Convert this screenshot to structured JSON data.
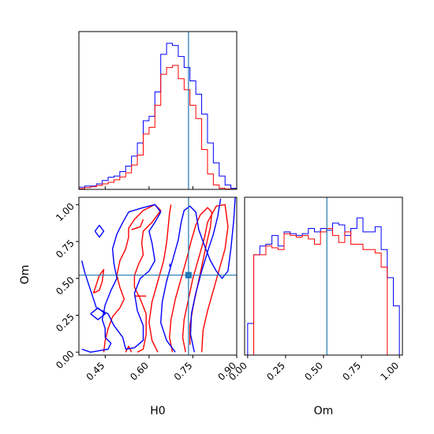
{
  "colors": {
    "blue": "#0000ff",
    "red": "#ff0000",
    "truth": "#1f77b4"
  },
  "chart_data": {
    "type": "corner",
    "parameters": [
      "H0",
      "Om"
    ],
    "truths": {
      "H0": 0.735,
      "Om": 0.522
    },
    "panels": [
      {
        "name": "hist-H0",
        "type": "step-histogram",
        "xlim": [
          0.36,
          0.9
        ],
        "bin_edges": [
          0.36,
          0.38,
          0.4,
          0.42,
          0.44,
          0.46,
          0.48,
          0.5,
          0.52,
          0.54,
          0.56,
          0.58,
          0.6,
          0.62,
          0.64,
          0.66,
          0.68,
          0.7,
          0.72,
          0.74,
          0.76,
          0.78,
          0.8,
          0.82,
          0.84,
          0.86,
          0.88,
          0.9
        ],
        "series": [
          {
            "name": "blue",
            "values": [
              1.0,
              1.5,
              1.5,
              2.5,
              4.0,
              5.5,
              6.0,
              8.0,
              10.5,
              15.0,
              21.0,
              31.0,
              33.0,
              44.0,
              61.0,
              66.0,
              65.0,
              60.0,
              55.0,
              49.0,
              43.0,
              34.0,
              21.0,
              12.0,
              6.0,
              2.0,
              0.5
            ]
          },
          {
            "name": "red",
            "values": [
              0.3,
              0.8,
              1.2,
              1.8,
              2.5,
              3.2,
              4.3,
              5.6,
              7.5,
              11.0,
              15.5,
              25.0,
              28.0,
              38.0,
              52.0,
              55.0,
              56.0,
              50.0,
              45.0,
              38.0,
              32.0,
              18.0,
              7.0,
              2.0,
              0.5,
              0.2,
              0.1
            ]
          }
        ]
      },
      {
        "name": "hist-Om",
        "type": "step-histogram",
        "xlim": [
          -0.02,
          1.02
        ],
        "xticks": [
          "0.00",
          "0.25",
          "0.50",
          "0.75",
          "1.00"
        ],
        "xlabel": "Om",
        "bin_edges": [
          0.0,
          0.04,
          0.08,
          0.12,
          0.16,
          0.2,
          0.24,
          0.28,
          0.32,
          0.36,
          0.4,
          0.44,
          0.48,
          0.52,
          0.56,
          0.6,
          0.64,
          0.68,
          0.72,
          0.76,
          0.8,
          0.84,
          0.88,
          0.92,
          0.96,
          1.0
        ],
        "series": [
          {
            "name": "blue",
            "values": [
              18,
              57,
              62,
              63,
              68,
              62,
              70,
              69,
              68,
              69,
              72,
              70,
              72,
              71,
              75,
              74,
              68,
              72,
              78,
              70,
              70,
              73,
              60,
              44,
              28
            ]
          },
          {
            "name": "red",
            "values": [
              0,
              57,
              57,
              62,
              61,
              60,
              69,
              68,
              67,
              68,
              66,
              63,
              70,
              72,
              68,
              64,
              70,
              63,
              63,
              60,
              60,
              58,
              50,
              0,
              0
            ]
          }
        ]
      },
      {
        "name": "contour-H0-Om",
        "type": "contour",
        "xlim": [
          0.36,
          0.9
        ],
        "ylim": [
          -0.02,
          1.05
        ],
        "xticks": [
          "0.45",
          "0.60",
          "0.75",
          "0.90"
        ],
        "yticks": [
          "0.00",
          "0.25",
          "0.50",
          "0.75",
          "1.00"
        ],
        "xlabel": "H0",
        "ylabel": "Om",
        "series": [
          {
            "name": "blue",
            "contours": [
              [
                [
                  0.755,
                  0.0
                ],
                [
                  0.742,
                  0.12
                ],
                [
                  0.745,
                  0.26
                ],
                [
                  0.76,
                  0.4
                ],
                [
                  0.78,
                  0.55
                ],
                [
                  0.8,
                  0.68
                ],
                [
                  0.82,
                  0.8
                ],
                [
                  0.835,
                  0.92
                ],
                [
                  0.845,
                  1.04
                ]
              ],
              [
                [
                  0.69,
                  0.0
                ],
                [
                  0.66,
                  0.08
                ],
                [
                  0.64,
                  0.2
                ],
                [
                  0.645,
                  0.34
                ],
                [
                  0.66,
                  0.48
                ],
                [
                  0.68,
                  0.62
                ],
                [
                  0.7,
                  0.76
                ],
                [
                  0.71,
                  0.88
                ],
                [
                  0.72,
                  0.96
                ],
                [
                  0.74,
                  0.99
                ],
                [
                  0.76,
                  0.95
                ],
                [
                  0.77,
                  0.83
                ],
                [
                  0.79,
                  0.72
                ],
                [
                  0.81,
                  0.62
                ],
                [
                  0.83,
                  0.55
                ],
                [
                  0.85,
                  0.5
                ],
                [
                  0.87,
                  0.55
                ],
                [
                  0.88,
                  0.7
                ],
                [
                  0.89,
                  0.9
                ],
                [
                  0.895,
                  1.05
                ]
              ],
              [
                [
                  0.37,
                  0.02
                ],
                [
                  0.4,
                  0.0
                ],
                [
                  0.43,
                  0.01
                ],
                [
                  0.46,
                  0.02
                ],
                [
                  0.47,
                  0.06
                ],
                [
                  0.45,
                  0.1
                ],
                [
                  0.45,
                  0.16
                ],
                [
                  0.44,
                  0.22
                ],
                [
                  0.45,
                  0.32
                ],
                [
                  0.47,
                  0.42
                ],
                [
                  0.49,
                  0.5
                ],
                [
                  0.48,
                  0.6
                ],
                [
                  0.475,
                  0.7
                ],
                [
                  0.49,
                  0.8
                ],
                [
                  0.51,
                  0.88
                ],
                [
                  0.53,
                  0.95
                ],
                [
                  0.58,
                  0.98
                ],
                [
                  0.62,
                  1.0
                ],
                [
                  0.64,
                  0.95
                ],
                [
                  0.62,
                  0.88
                ],
                [
                  0.6,
                  0.82
                ],
                [
                  0.61,
                  0.74
                ],
                [
                  0.62,
                  0.62
                ],
                [
                  0.6,
                  0.55
                ],
                [
                  0.57,
                  0.5
                ],
                [
                  0.55,
                  0.4
                ],
                [
                  0.56,
                  0.28
                ],
                [
                  0.58,
                  0.18
                ],
                [
                  0.58,
                  0.08
                ],
                [
                  0.55,
                  0.03
                ],
                [
                  0.52,
                  0.02
                ],
                [
                  0.51,
                  0.1
                ],
                [
                  0.48,
                  0.18
                ],
                [
                  0.46,
                  0.26
                ],
                [
                  0.42,
                  0.3
                ],
                [
                  0.4,
                  0.42
                ],
                [
                  0.38,
                  0.54
                ],
                [
                  0.37,
                  0.62
                ]
              ],
              [
                [
                  0.4,
                  0.26
                ],
                [
                  0.425,
                  0.22
                ],
                [
                  0.45,
                  0.26
                ],
                [
                  0.425,
                  0.3
                ],
                [
                  0.4,
                  0.26
                ]
              ],
              [
                [
                  0.415,
                  0.82
                ],
                [
                  0.43,
                  0.78
                ],
                [
                  0.445,
                  0.82
                ],
                [
                  0.43,
                  0.86
                ],
                [
                  0.415,
                  0.82
                ]
              ],
              [
                [
                  0.67,
                  0.58
                ],
                [
                  0.672,
                  0.6
                ]
              ]
            ]
          },
          {
            "name": "red",
            "contours": [
              [
                [
                  0.725,
                  0.0
                ],
                [
                  0.715,
                  0.1
                ],
                [
                  0.72,
                  0.22
                ],
                [
                  0.735,
                  0.36
                ],
                [
                  0.75,
                  0.5
                ],
                [
                  0.77,
                  0.64
                ],
                [
                  0.79,
                  0.78
                ],
                [
                  0.8,
                  0.88
                ],
                [
                  0.83,
                  0.99
                ],
                [
                  0.86,
                  1.0
                ],
                [
                  0.87,
                  0.85
                ],
                [
                  0.86,
                  0.7
                ],
                [
                  0.84,
                  0.56
                ],
                [
                  0.82,
                  0.42
                ],
                [
                  0.8,
                  0.28
                ],
                [
                  0.785,
                  0.15
                ],
                [
                  0.78,
                  0.0
                ]
              ],
              [
                [
                  0.68,
                  0.0
                ],
                [
                  0.67,
                  0.1
                ],
                [
                  0.675,
                  0.22
                ],
                [
                  0.69,
                  0.36
                ],
                [
                  0.71,
                  0.5
                ],
                [
                  0.73,
                  0.64
                ],
                [
                  0.745,
                  0.76
                ],
                [
                  0.76,
                  0.86
                ],
                [
                  0.775,
                  0.93
                ],
                [
                  0.8,
                  0.98
                ],
                [
                  0.815,
                  0.95
                ],
                [
                  0.81,
                  0.85
                ],
                [
                  0.795,
                  0.72
                ],
                [
                  0.78,
                  0.58
                ],
                [
                  0.765,
                  0.44
                ],
                [
                  0.75,
                  0.3
                ],
                [
                  0.74,
                  0.18
                ],
                [
                  0.74,
                  0.05
                ]
              ],
              [
                [
                  0.63,
                  0.0
                ],
                [
                  0.61,
                  0.08
                ],
                [
                  0.6,
                  0.2
                ],
                [
                  0.61,
                  0.34
                ],
                [
                  0.63,
                  0.48
                ],
                [
                  0.65,
                  0.62
                ],
                [
                  0.66,
                  0.74
                ],
                [
                  0.665,
                  0.84
                ],
                [
                  0.67,
                  0.94
                ],
                [
                  0.675,
                  1.0
                ]
              ],
              [
                [
                  0.445,
                  0.0
                ],
                [
                  0.45,
                  0.08
                ],
                [
                  0.46,
                  0.16
                ],
                [
                  0.475,
                  0.24
                ],
                [
                  0.5,
                  0.3
                ],
                [
                  0.515,
                  0.36
                ],
                [
                  0.5,
                  0.44
                ],
                [
                  0.49,
                  0.52
                ],
                [
                  0.5,
                  0.62
                ],
                [
                  0.52,
                  0.7
                ],
                [
                  0.53,
                  0.78
                ],
                [
                  0.53,
                  0.84
                ],
                [
                  0.55,
                  0.9
                ],
                [
                  0.58,
                  0.96
                ],
                [
                  0.62,
                  1.0
                ],
                [
                  0.64,
                  0.96
                ],
                [
                  0.61,
                  0.88
                ],
                [
                  0.58,
                  0.82
                ],
                [
                  0.575,
                  0.74
                ],
                [
                  0.58,
                  0.66
                ],
                [
                  0.565,
                  0.6
                ],
                [
                  0.55,
                  0.52
                ],
                [
                  0.55,
                  0.44
                ],
                [
                  0.57,
                  0.36
                ],
                [
                  0.59,
                  0.26
                ],
                [
                  0.59,
                  0.12
                ],
                [
                  0.58,
                  0.02
                ],
                [
                  0.56,
                  0.0
                ]
              ],
              [
                [
                  0.41,
                  0.4
                ],
                [
                  0.42,
                  0.46
                ],
                [
                  0.43,
                  0.52
                ],
                [
                  0.445,
                  0.56
                ],
                [
                  0.44,
                  0.48
                ],
                [
                  0.43,
                  0.42
                ],
                [
                  0.41,
                  0.4
                ]
              ],
              [
                [
                  0.52,
                  0.0
                ],
                [
                  0.53,
                  0.04
                ],
                [
                  0.54,
                  0.0
                ]
              ],
              [
                [
                  0.55,
                  0.38
                ],
                [
                  0.59,
                  0.38
                ]
              ],
              [
                [
                  0.54,
                  0.83
                ],
                [
                  0.57,
                  0.85
                ],
                [
                  0.58,
                  0.9
                ]
              ]
            ]
          }
        ]
      }
    ]
  }
}
